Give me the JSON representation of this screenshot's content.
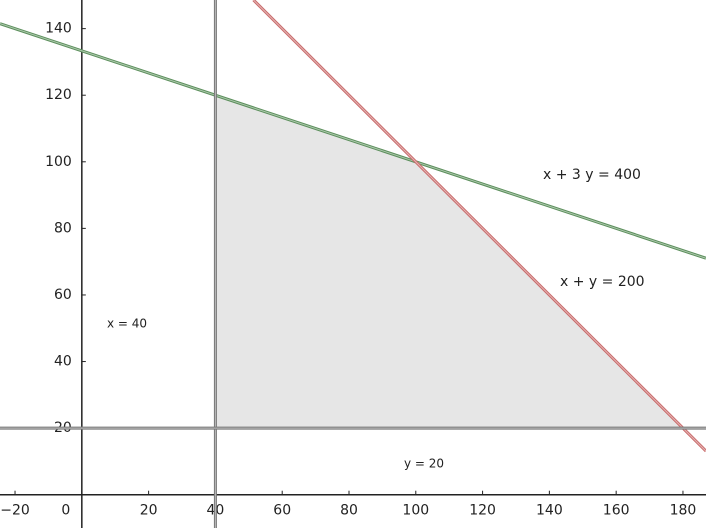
{
  "chart_data": {
    "type": "line",
    "xlim": [
      -24.5,
      186.9
    ],
    "ylim": [
      -10,
      148.6
    ],
    "xticks": [
      {
        "value": -20,
        "label": "−20"
      },
      0,
      20,
      40,
      60,
      80,
      100,
      120,
      140,
      160,
      180
    ],
    "yticks": [
      20,
      40,
      60,
      80,
      100,
      120,
      140
    ],
    "region": {
      "color": "#e6e6e6",
      "x": [
        40,
        40,
        100,
        180
      ],
      "values": [
        20,
        120,
        100,
        20
      ]
    },
    "series": [
      {
        "name": "x + 3 y = 400",
        "color": "#5b8f5b",
        "x": [
          -24.5,
          186.9
        ],
        "values": [
          141.5,
          71.03
        ]
      },
      {
        "name": "x + y = 200",
        "color": "#c96a6a",
        "x": [
          51.4,
          186.9
        ],
        "values": [
          148.6,
          13.1
        ]
      },
      {
        "name": "x = 40",
        "color": "#777777",
        "x": [
          40,
          40
        ],
        "values": [
          -10,
          148.6
        ]
      },
      {
        "name": "y = 20",
        "color": "#777777",
        "x": [
          -24.5,
          186.9
        ],
        "values": [
          20,
          20
        ]
      }
    ]
  }
}
